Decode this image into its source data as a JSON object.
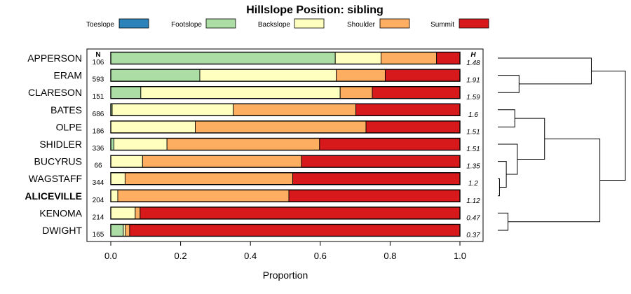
{
  "chart_data": {
    "type": "bar",
    "orientation": "horizontal",
    "stacked": true,
    "title": "Hillslope Position: sibling",
    "xlabel": "Proportion",
    "ylabel": "",
    "xlim": [
      0,
      1
    ],
    "x_ticks": [
      "0.0",
      "0.2",
      "0.4",
      "0.6",
      "0.8",
      "1.0"
    ],
    "legend_position": "top",
    "n_header": "N",
    "h_header": "H",
    "series": [
      {
        "name": "Toeslope",
        "color": "#2B83BA",
        "values": [
          0,
          0,
          0,
          0,
          0,
          0,
          0,
          0,
          0,
          0,
          0
        ]
      },
      {
        "name": "Footslope",
        "color": "#ABDDA4",
        "values": [
          0.643,
          0.255,
          0.086,
          0.004,
          0,
          0.009,
          0,
          0,
          0,
          0,
          0.036
        ]
      },
      {
        "name": "Backslope",
        "color": "#FFFFBF",
        "values": [
          0.131,
          0.391,
          0.571,
          0.347,
          0.242,
          0.152,
          0.091,
          0.041,
          0.02,
          0.07,
          0.006
        ]
      },
      {
        "name": "Shoulder",
        "color": "#FDAE61",
        "values": [
          0.159,
          0.14,
          0.092,
          0.351,
          0.489,
          0.437,
          0.455,
          0.48,
          0.49,
          0.014,
          0.012
        ]
      },
      {
        "name": "Summit",
        "color": "#D7191C",
        "values": [
          0.067,
          0.214,
          0.251,
          0.298,
          0.269,
          0.402,
          0.454,
          0.479,
          0.49,
          0.916,
          0.946
        ]
      }
    ],
    "categories": [
      "APPERSON",
      "ERAM",
      "CLARESON",
      "BATES",
      "OLPE",
      "SHIDLER",
      "BUCYRUS",
      "WAGSTAFF",
      "ALICEVILLE",
      "KENOMA",
      "DWIGHT"
    ],
    "highlighted_category": "ALICEVILLE",
    "n": [
      "106",
      "593",
      "151",
      "686",
      "186",
      "336",
      "66",
      "344",
      "204",
      "214",
      "165"
    ],
    "h": [
      "1.48",
      "1.91",
      "1.59",
      "1.6",
      "1.51",
      "1.51",
      "1.35",
      "1.2",
      "1.12",
      "0.47",
      "0.37"
    ],
    "dendrogram": {
      "leaf_order": [
        "APPERSON",
        "ERAM",
        "CLARESON",
        "BATES",
        "OLPE",
        "SHIDLER",
        "BUCYRUS",
        "WAGSTAFF",
        "ALICEVILLE",
        "KENOMA",
        "DWIGHT"
      ],
      "merges": [
        {
          "a": "WAGSTAFF",
          "b": "ALICEVILLE",
          "height": 0.02
        },
        {
          "a": "BUCYRUS",
          "b": "WAGSTAFF+ALICEVILLE",
          "height": 0.1
        },
        {
          "a": "SHIDLER",
          "b": "BUCYRUS+WAGSTAFF+ALICEVILLE",
          "height": 0.23
        },
        {
          "a": "KENOMA",
          "b": "DWIGHT",
          "height": 0.12
        },
        {
          "a": "BATES",
          "b": "OLPE",
          "height": 0.2
        },
        {
          "a": "BATES+OLPE",
          "b": "SHIDLER+BUCYRUS+WAGSTAFF+ALICEVILLE",
          "height": 0.55
        },
        {
          "a": "ERAM",
          "b": "CLARESON",
          "height": 0.25
        },
        {
          "a": "middle",
          "b": "KENOMA+DWIGHT",
          "height": 1.2
        },
        {
          "a": "APPERSON",
          "b": "ERAM+CLARESON",
          "height": 1.1
        },
        {
          "a": "top",
          "b": "bottom",
          "height": 1.5
        }
      ]
    }
  }
}
